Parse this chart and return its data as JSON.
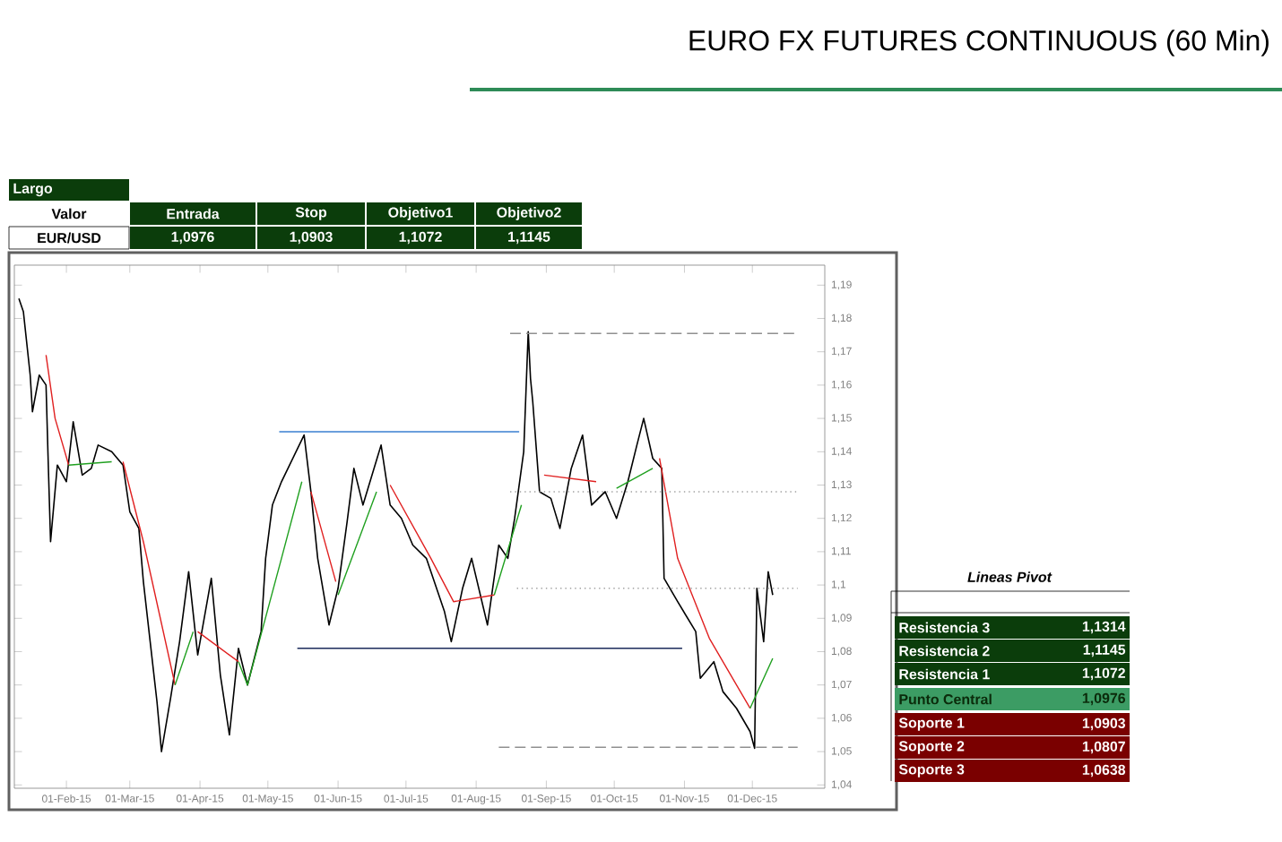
{
  "chart_data": [
    {
      "type": "line",
      "title": "EURO FX FUTURES CONTINUOUS (60 Min)",
      "xlim": [
        "2015-01-09",
        "2016-01-02"
      ],
      "ylim": [
        1.039,
        1.196
      ],
      "xticks": [
        {
          "value": "2015-02-01",
          "label": "01-Feb-15"
        },
        {
          "value": "2015-03-01",
          "label": "01-Mar-15"
        },
        {
          "value": "2015-04-01",
          "label": "01-Apr-15"
        },
        {
          "value": "2015-05-01",
          "label": "01-May-15"
        },
        {
          "value": "2015-06-01",
          "label": "01-Jun-15"
        },
        {
          "value": "2015-07-01",
          "label": "01-Jul-15"
        },
        {
          "value": "2015-08-01",
          "label": "01-Aug-15"
        },
        {
          "value": "2015-09-01",
          "label": "01-Sep-15"
        },
        {
          "value": "2015-10-01",
          "label": "01-Oct-15"
        },
        {
          "value": "2015-11-01",
          "label": "01-Nov-15"
        },
        {
          "value": "2015-12-01",
          "label": "01-Dec-15"
        }
      ],
      "yticks": [
        {
          "value": 1.04,
          "label": "1,04"
        },
        {
          "value": 1.05,
          "label": "1,05"
        },
        {
          "value": 1.06,
          "label": "1,06"
        },
        {
          "value": 1.07,
          "label": "1,07"
        },
        {
          "value": 1.08,
          "label": "1,08"
        },
        {
          "value": 1.09,
          "label": "1,09"
        },
        {
          "value": 1.1,
          "label": "1,1"
        },
        {
          "value": 1.11,
          "label": "1,11"
        },
        {
          "value": 1.12,
          "label": "1,12"
        },
        {
          "value": 1.13,
          "label": "1,13"
        },
        {
          "value": 1.14,
          "label": "1,14"
        },
        {
          "value": 1.15,
          "label": "1,15"
        },
        {
          "value": 1.16,
          "label": "1,16"
        },
        {
          "value": 1.17,
          "label": "1,17"
        },
        {
          "value": 1.18,
          "label": "1,18"
        },
        {
          "value": 1.19,
          "label": "1,19"
        }
      ],
      "series": [
        {
          "color": "#000000",
          "line_style": "solid",
          "x": [
            "2015-01-11",
            "2015-01-13",
            "2015-01-16",
            "2015-01-17",
            "2015-01-20",
            "2015-01-23",
            "2015-01-24",
            "2015-01-25",
            "2015-01-28",
            "2015-02-01",
            "2015-02-04",
            "2015-02-08",
            "2015-02-12",
            "2015-02-15",
            "2015-02-21",
            "2015-02-26",
            "2015-03-01",
            "2015-03-05",
            "2015-03-07",
            "2015-03-10",
            "2015-03-13",
            "2015-03-15",
            "2015-03-19",
            "2015-03-23",
            "2015-03-27",
            "2015-03-31",
            "2015-04-06",
            "2015-04-10",
            "2015-04-14",
            "2015-04-18",
            "2015-04-22",
            "2015-04-28",
            "2015-04-30",
            "2015-05-03",
            "2015-05-07",
            "2015-05-12",
            "2015-05-17",
            "2015-05-20",
            "2015-05-23",
            "2015-05-28",
            "2015-06-01",
            "2015-06-05",
            "2015-06-08",
            "2015-06-12",
            "2015-06-20",
            "2015-06-24",
            "2015-06-29",
            "2015-07-04",
            "2015-07-10",
            "2015-07-18",
            "2015-07-21",
            "2015-07-26",
            "2015-07-30",
            "2015-08-06",
            "2015-08-11",
            "2015-08-15",
            "2015-08-18",
            "2015-08-22",
            "2015-08-24",
            "2015-08-25",
            "2015-08-26",
            "2015-08-29",
            "2015-09-03",
            "2015-09-07",
            "2015-09-12",
            "2015-09-17",
            "2015-09-21",
            "2015-09-27",
            "2015-10-02",
            "2015-10-07",
            "2015-10-11",
            "2015-10-14",
            "2015-10-18",
            "2015-10-22",
            "2015-10-23",
            "2015-10-29",
            "2015-11-06",
            "2015-11-08",
            "2015-11-14",
            "2015-11-18",
            "2015-11-24",
            "2015-11-30",
            "2015-12-02",
            "2015-12-03",
            "2015-12-06",
            "2015-12-08",
            "2015-12-10"
          ],
          "values": [
            1.186,
            1.182,
            1.163,
            1.152,
            1.163,
            1.16,
            1.136,
            1.113,
            1.136,
            1.131,
            1.149,
            1.133,
            1.135,
            1.142,
            1.14,
            1.136,
            1.122,
            1.117,
            1.101,
            1.083,
            1.065,
            1.05,
            1.066,
            1.083,
            1.104,
            1.079,
            1.102,
            1.073,
            1.055,
            1.081,
            1.07,
            1.086,
            1.108,
            1.124,
            1.131,
            1.138,
            1.145,
            1.128,
            1.108,
            1.088,
            1.099,
            1.119,
            1.135,
            1.124,
            1.142,
            1.124,
            1.12,
            1.112,
            1.108,
            1.092,
            1.083,
            1.099,
            1.108,
            1.088,
            1.112,
            1.108,
            1.12,
            1.14,
            1.176,
            1.162,
            1.155,
            1.128,
            1.126,
            1.117,
            1.135,
            1.145,
            1.124,
            1.128,
            1.12,
            1.131,
            1.142,
            1.15,
            1.138,
            1.135,
            1.102,
            1.095,
            1.086,
            1.072,
            1.077,
            1.068,
            1.063,
            1.056,
            1.051,
            1.099,
            1.083,
            1.104,
            1.097
          ]
        },
        {
          "color": "#e02020",
          "line_style": "solid",
          "x": [
            "2015-01-23",
            "2015-01-27",
            "2015-02-02",
            "2015-02-10",
            "2015-02-26",
            "2015-03-07",
            "2015-03-21",
            "2015-03-25",
            "2015-03-31",
            "2015-04-18",
            "2015-05-01",
            "2015-05-20",
            "2015-05-31",
            "2015-06-10",
            "2015-06-24",
            "2015-07-12",
            "2015-07-22",
            "2015-08-09",
            "2015-08-20",
            "2015-08-31",
            "2015-09-23",
            "2015-10-10",
            "2015-10-21",
            "2015-10-29",
            "2015-11-12",
            "2015-11-30"
          ],
          "values": [
            1.169,
            1.15,
            1.136,
            null,
            1.137,
            1.113,
            1.07,
            null,
            1.086,
            1.077,
            null,
            1.128,
            1.101,
            null,
            1.13,
            1.108,
            1.095,
            1.097,
            null,
            1.133,
            1.131,
            null,
            1.138,
            1.108,
            1.084,
            1.063
          ]
        },
        {
          "color": "#20a020",
          "line_style": "solid",
          "x": [
            "2015-02-02",
            "2015-02-21",
            "2015-03-10",
            "2015-03-21",
            "2015-03-29",
            "2015-04-05",
            "2015-04-18",
            "2015-04-22",
            "2015-05-07",
            "2015-05-16",
            "2015-05-25",
            "2015-06-01",
            "2015-06-18",
            "2015-07-20",
            "2015-08-09",
            "2015-08-21",
            "2015-09-20",
            "2015-10-02",
            "2015-10-18",
            "2015-11-10",
            "2015-11-30",
            "2015-12-10"
          ],
          "values": [
            1.136,
            1.137,
            null,
            1.07,
            1.086,
            null,
            1.077,
            1.07,
            1.108,
            1.131,
            null,
            1.097,
            1.128,
            null,
            1.097,
            1.124,
            null,
            1.129,
            1.135,
            null,
            1.063,
            1.078
          ]
        },
        {
          "color": "#3a7fd0",
          "line_style": "solid",
          "x": [
            "2015-05-06",
            "2015-08-20"
          ],
          "values": [
            1.146,
            1.146
          ]
        },
        {
          "color": "#1a2a5a",
          "line_style": "solid",
          "x": [
            "2015-05-14",
            "2015-10-31"
          ],
          "values": [
            1.081,
            1.081
          ]
        },
        {
          "color": "#909090",
          "line_style": "dashed",
          "x": [
            "2015-08-16",
            "2015-12-21"
          ],
          "values": [
            1.1755,
            1.1755
          ]
        },
        {
          "color": "#909090",
          "line_style": "dashed",
          "x": [
            "2015-08-11",
            "2015-12-21"
          ],
          "values": [
            1.0513,
            1.0513
          ]
        },
        {
          "color": "#a0a0a0",
          "line_style": "dotted",
          "x": [
            "2015-08-16",
            "2015-12-21"
          ],
          "values": [
            1.128,
            1.128
          ]
        },
        {
          "color": "#a0a0a0",
          "line_style": "dotted",
          "x": [
            "2015-08-19",
            "2015-12-21"
          ],
          "values": [
            1.099,
            1.099
          ]
        }
      ]
    },
    {
      "type": "other",
      "title": "Largo",
      "annotations": [
        "Valor",
        "Entrada",
        "Stop",
        "Objetivo1",
        "Objetivo2",
        "EUR/USD",
        "1,0976",
        "1,0903",
        "1,1072",
        "1,1145"
      ]
    },
    {
      "type": "other",
      "title": "Lineas Pivot",
      "annotations": [
        "Resistencia 3",
        "1,1314",
        "Resistencia 2",
        "1,1145",
        "Resistencia 1",
        "1,1072",
        "Punto Central",
        "1,0976",
        "Soporte 1",
        "1,0903",
        "Soporte 2",
        "1,0807",
        "Soporte 3",
        "1,0638"
      ]
    }
  ]
}
